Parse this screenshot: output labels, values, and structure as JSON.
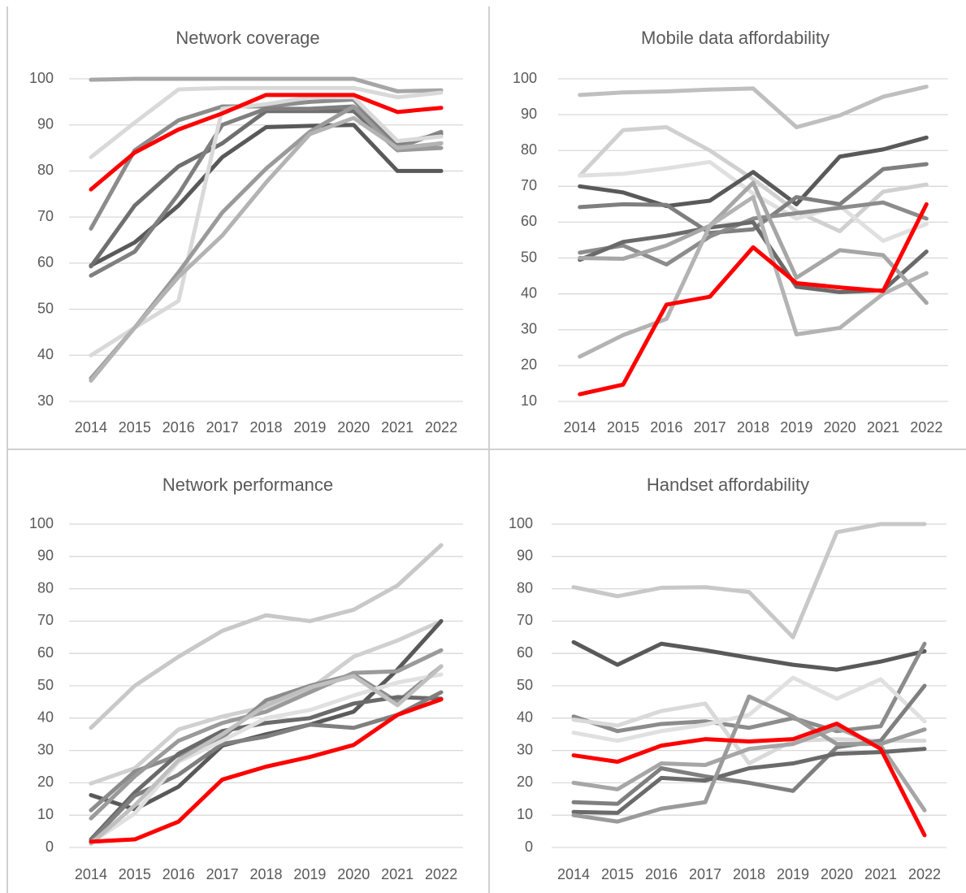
{
  "chart_data": [
    {
      "type": "line",
      "title": "Network coverage",
      "categories": [
        "2014",
        "2015",
        "2016",
        "2017",
        "2018",
        "2019",
        "2020",
        "2021",
        "2022"
      ],
      "ylim": [
        30,
        100
      ],
      "yticks": [
        30,
        40,
        50,
        60,
        70,
        80,
        90,
        100
      ],
      "grid": true,
      "series": [
        {
          "color": "#a6a6a6",
          "values": [
            99.8,
            100,
            100,
            100,
            100,
            100,
            100,
            97.3,
            97.5
          ]
        },
        {
          "color": "#d9d9d9",
          "values": [
            83,
            90.5,
            97.7,
            98,
            98,
            98,
            98,
            96,
            97
          ]
        },
        {
          "color": "#8c8c8c",
          "values": [
            67.5,
            84.5,
            91,
            94,
            94,
            95,
            95.5,
            85,
            88.5
          ]
        },
        {
          "color": "#595959",
          "values": [
            59.5,
            64.5,
            72.5,
            83,
            89.5,
            89.8,
            90,
            80,
            80
          ]
        },
        {
          "color": "#6f6f6f",
          "values": [
            59.3,
            72.5,
            81,
            86,
            93,
            93,
            93,
            84.5,
            86
          ]
        },
        {
          "color": "#7f7f7f",
          "values": [
            57.3,
            62.5,
            75,
            90,
            93.5,
            93.5,
            94,
            86,
            88
          ]
        },
        {
          "color": "#d9d9d9",
          "values": [
            40,
            46,
            51.8,
            93.5,
            94.5,
            96,
            96,
            86.5,
            87.5
          ]
        },
        {
          "color": "#9a9a9a",
          "values": [
            35,
            46,
            58,
            71,
            80.5,
            88.5,
            94,
            84.5,
            85
          ]
        },
        {
          "color": "#b3b3b3",
          "values": [
            34.5,
            46,
            57,
            66,
            77.5,
            88,
            91.5,
            85,
            86
          ]
        },
        {
          "color": "#ff0000",
          "values": [
            76,
            84,
            89,
            92.5,
            96.5,
            96.5,
            96.5,
            92.8,
            93.7
          ]
        }
      ]
    },
    {
      "type": "line",
      "title": "Mobile data affordability",
      "categories": [
        "2014",
        "2015",
        "2016",
        "2017",
        "2018",
        "2019",
        "2020",
        "2021",
        "2022"
      ],
      "ylim": [
        10,
        100
      ],
      "yticks": [
        10,
        20,
        30,
        40,
        50,
        60,
        70,
        80,
        90,
        100
      ],
      "grid": true,
      "series": [
        {
          "color": "#bfbfbf",
          "values": [
            95.5,
            96.2,
            96.5,
            97,
            97.3,
            86.5,
            89.8,
            95,
            97.8
          ]
        },
        {
          "color": "#d0d0d0",
          "values": [
            73,
            85.7,
            86.5,
            80,
            72,
            63,
            57.5,
            68.5,
            70.5
          ]
        },
        {
          "color": "#e0e0e0",
          "values": [
            73,
            73.5,
            75,
            76.8,
            68,
            61,
            64.5,
            54.8,
            59.5
          ]
        },
        {
          "color": "#595959",
          "values": [
            70,
            68.3,
            64.5,
            66,
            74,
            65,
            78.3,
            80.3,
            83.6
          ]
        },
        {
          "color": "#7f7f7f",
          "values": [
            64.2,
            65,
            64.8,
            57,
            58,
            67,
            65,
            74.8,
            76.2
          ]
        },
        {
          "color": "#8c8c8c",
          "values": [
            51.5,
            53.5,
            48.2,
            56,
            61,
            62.5,
            64,
            65.5,
            61
          ]
        },
        {
          "color": "#6a6a6a",
          "values": [
            49.5,
            54.5,
            56.2,
            58.5,
            60,
            42,
            40.5,
            41,
            51.8
          ]
        },
        {
          "color": "#a6a6a6",
          "values": [
            50,
            49.8,
            53.5,
            59,
            71,
            44.5,
            52.2,
            50.8,
            37.5
          ]
        },
        {
          "color": "#b3b3b3",
          "values": [
            22.5,
            28.5,
            33,
            59,
            67,
            28.7,
            30.5,
            40,
            45.8
          ]
        },
        {
          "color": "#ff0000",
          "values": [
            12,
            14.7,
            37,
            39.2,
            53,
            43,
            41.8,
            40.8,
            65
          ]
        }
      ]
    },
    {
      "type": "line",
      "title": "Network performance",
      "categories": [
        "2014",
        "2015",
        "2016",
        "2017",
        "2018",
        "2019",
        "2020",
        "2021",
        "2022"
      ],
      "ylim": [
        0,
        100
      ],
      "yticks": [
        0,
        10,
        20,
        30,
        40,
        50,
        60,
        70,
        80,
        90,
        100
      ],
      "grid": true,
      "series": [
        {
          "color": "#c8c8c8",
          "values": [
            37,
            50,
            59,
            67,
            71.8,
            70,
            73.5,
            81,
            93.5
          ]
        },
        {
          "color": "#d0d0d0",
          "values": [
            19.8,
            24.5,
            36.5,
            40.5,
            43.5,
            49,
            59,
            64,
            70
          ]
        },
        {
          "color": "#595959",
          "values": [
            16.2,
            11.8,
            18.8,
            31.5,
            35,
            38,
            42,
            55,
            70
          ]
        },
        {
          "color": "#8c8c8c",
          "values": [
            11.5,
            23.5,
            28.5,
            34,
            45.5,
            50,
            53.5,
            45,
            56
          ]
        },
        {
          "color": "#9a9a9a",
          "values": [
            9,
            22,
            33,
            38.5,
            42,
            48,
            54,
            54.5,
            61
          ]
        },
        {
          "color": "#6a6a6a",
          "values": [
            2.5,
            17,
            29,
            36,
            38.5,
            40,
            44.5,
            46.5,
            46
          ]
        },
        {
          "color": "#7f7f7f",
          "values": [
            2,
            16,
            22.5,
            32,
            34.3,
            38,
            37,
            41,
            48
          ]
        },
        {
          "color": "#e0e0e0",
          "values": [
            1.5,
            10.5,
            26.5,
            33,
            40,
            42.5,
            47,
            51,
            53.5
          ]
        },
        {
          "color": "#bfbfbf",
          "values": [
            1.2,
            13,
            27,
            35,
            44,
            49.5,
            53,
            44,
            56
          ]
        },
        {
          "color": "#ff0000",
          "values": [
            1.8,
            2.5,
            8,
            21,
            25,
            28,
            31.7,
            41,
            45.8
          ]
        }
      ]
    },
    {
      "type": "line",
      "title": "Handset affordability",
      "categories": [
        "2014",
        "2015",
        "2016",
        "2017",
        "2018",
        "2019",
        "2020",
        "2021",
        "2022"
      ],
      "ylim": [
        0,
        100
      ],
      "yticks": [
        0,
        10,
        20,
        30,
        40,
        50,
        60,
        70,
        80,
        90,
        100
      ],
      "grid": true,
      "series": [
        {
          "color": "#c8c8c8",
          "values": [
            80.5,
            77.7,
            80.3,
            80.5,
            79,
            65,
            97.5,
            100,
            100
          ]
        },
        {
          "color": "#595959",
          "values": [
            63.5,
            56.5,
            63,
            61,
            58.7,
            56.5,
            55,
            57.5,
            60.7
          ]
        },
        {
          "color": "#8c8c8c",
          "values": [
            40.5,
            36,
            38.2,
            39,
            37,
            40,
            36,
            37.5,
            63
          ]
        },
        {
          "color": "#d9d9d9",
          "values": [
            39.5,
            37.7,
            42.2,
            44.5,
            26,
            33,
            33.5,
            33,
            33
          ]
        },
        {
          "color": "#e0e0e0",
          "values": [
            35.5,
            33,
            36,
            38,
            41,
            52.5,
            46,
            52,
            39
          ]
        },
        {
          "color": "#a6a6a6",
          "values": [
            20,
            18,
            26,
            25.5,
            30.5,
            32,
            37,
            31.5,
            11.5
          ]
        },
        {
          "color": "#7f7f7f",
          "values": [
            14,
            13.5,
            24.5,
            22,
            20,
            17.5,
            31,
            33,
            50
          ]
        },
        {
          "color": "#6a6a6a",
          "values": [
            11,
            10.7,
            21.5,
            20.7,
            24.5,
            26,
            29,
            29.5,
            30.5
          ]
        },
        {
          "color": "#9a9a9a",
          "values": [
            10,
            8,
            12,
            14,
            46.7,
            40.5,
            32,
            32,
            36.5
          ]
        },
        {
          "color": "#ff0000",
          "values": [
            28.5,
            26.5,
            31.5,
            33.5,
            32.8,
            33.5,
            38.3,
            30.5,
            3.8
          ]
        }
      ]
    }
  ]
}
